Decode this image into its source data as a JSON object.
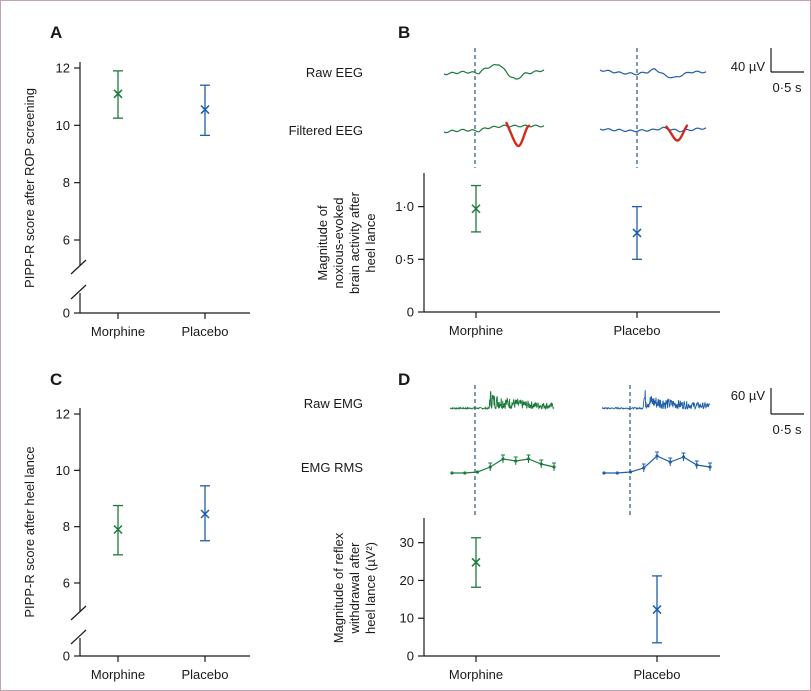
{
  "colors": {
    "morphine": "#1d7a3c",
    "placebo": "#1f5fa8",
    "filtered_highlight": "#d42a1e",
    "frame": "#c9a0ad",
    "axis": "#1a1a1a",
    "stimulus_line": "#2a5673"
  },
  "chart_data": [
    {
      "panel": "A",
      "type": "scatter",
      "categories": [
        "Morphine",
        "Placebo"
      ],
      "series": [
        {
          "category": "Morphine",
          "mean": 11.1,
          "lower": 10.25,
          "upper": 11.9
        },
        {
          "category": "Placebo",
          "mean": 10.55,
          "lower": 9.65,
          "upper": 11.4
        }
      ],
      "ylabel": "PIPP-R score after ROP screening",
      "yticks": [
        "0",
        "6",
        "8",
        "10",
        "12"
      ],
      "ylim": [
        0,
        12.5
      ],
      "axis_break": true,
      "grid": false
    },
    {
      "panel": "B",
      "type": "scatter",
      "categories": [
        "Morphine",
        "Placebo"
      ],
      "series": [
        {
          "category": "Morphine",
          "mean": 0.98,
          "lower": 0.76,
          "upper": 1.2
        },
        {
          "category": "Placebo",
          "mean": 0.75,
          "lower": 0.5,
          "upper": 1.0
        }
      ],
      "ylabel": [
        "Magnitude of",
        "noxious-evoked",
        "brain activity after",
        "heel lance"
      ],
      "yticks": [
        "0",
        "0·5",
        "1·0"
      ],
      "ylim": [
        0,
        1.3
      ],
      "grid": false,
      "trace_labels": [
        "Raw EEG",
        "Filtered EEG"
      ],
      "scale_bar": {
        "vertical": "40 µV",
        "horizontal": "0·5 s"
      }
    },
    {
      "panel": "C",
      "type": "scatter",
      "categories": [
        "Morphine",
        "Placebo"
      ],
      "series": [
        {
          "category": "Morphine",
          "mean": 7.9,
          "lower": 7.0,
          "upper": 8.75
        },
        {
          "category": "Placebo",
          "mean": 8.45,
          "lower": 7.5,
          "upper": 9.45
        }
      ],
      "ylabel": "PIPP-R score after heel lance",
      "yticks": [
        "0",
        "6",
        "8",
        "10",
        "12"
      ],
      "ylim": [
        0,
        12.5
      ],
      "axis_break": true,
      "grid": false
    },
    {
      "panel": "D",
      "type": "scatter",
      "categories": [
        "Morphine",
        "Placebo"
      ],
      "series": [
        {
          "category": "Morphine",
          "mean": 24.8,
          "lower": 18.2,
          "upper": 31.3
        },
        {
          "category": "Placebo",
          "mean": 12.3,
          "lower": 3.5,
          "upper": 21.2
        }
      ],
      "ylabel": [
        "Magnitude of reflex",
        "withdrawal after",
        "heel lance (µV²)"
      ],
      "yticks": [
        "0",
        "10",
        "20",
        "30"
      ],
      "ylim": [
        0,
        36
      ],
      "grid": false,
      "trace_labels": [
        "Raw EMG",
        "EMG RMS"
      ],
      "scale_bar": {
        "vertical": "60 µV",
        "horizontal": "0·5 s"
      }
    }
  ]
}
